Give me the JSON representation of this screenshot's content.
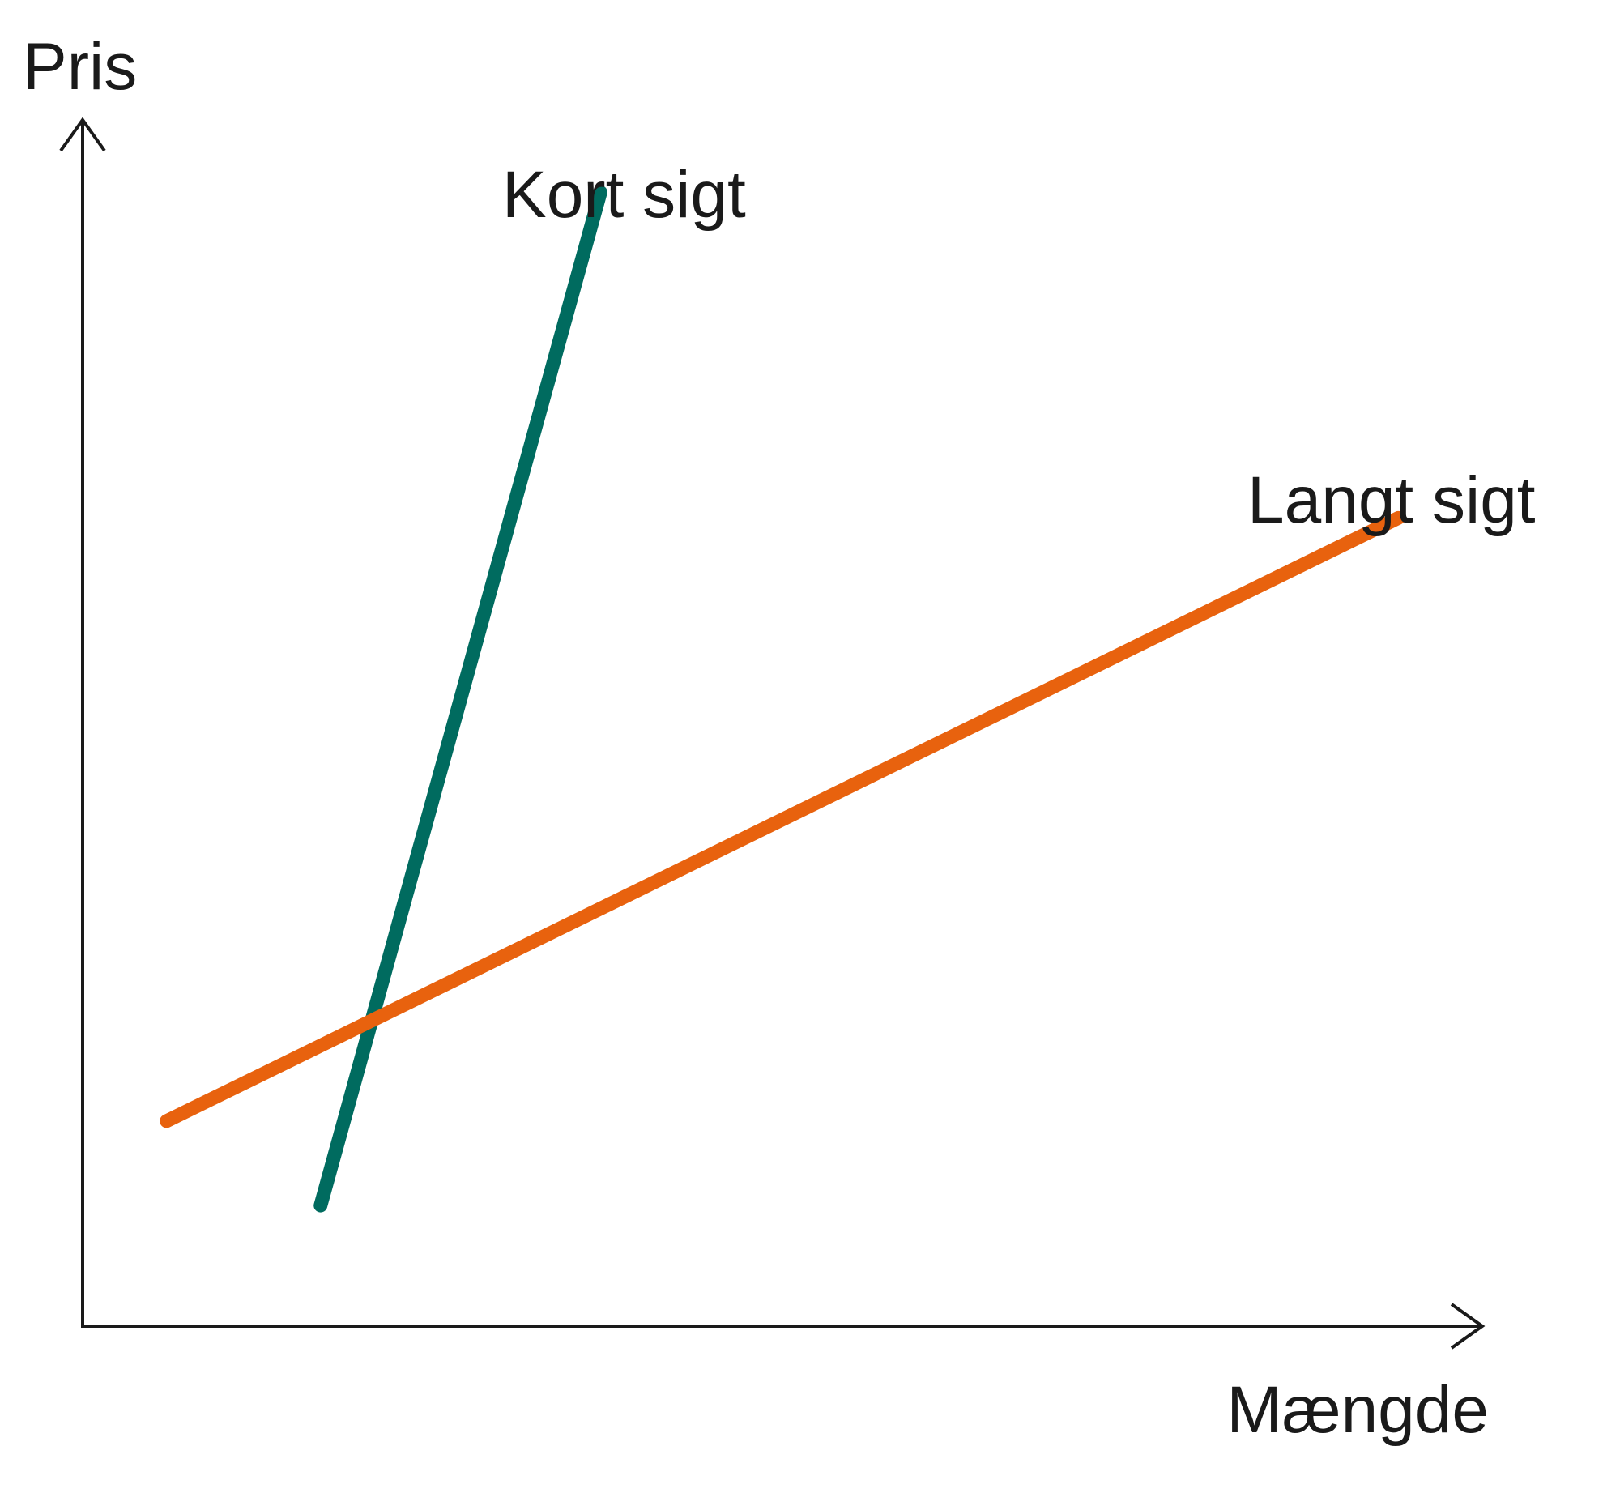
{
  "chart_data": {
    "type": "line",
    "title": "",
    "xlabel": "Mængde",
    "ylabel": "Pris",
    "grid": false,
    "legend": "none",
    "series": [
      {
        "name": "Kort sigt",
        "color": "#006b5f",
        "points": [
          [
            0.17,
            0.1
          ],
          [
            0.37,
            0.94
          ]
        ]
      },
      {
        "name": "Langt sigt",
        "color": "#e8620e",
        "points": [
          [
            0.06,
            0.17
          ],
          [
            0.94,
            0.67
          ]
        ]
      }
    ],
    "xlim": [
      0,
      1
    ],
    "ylim": [
      0,
      1
    ]
  }
}
